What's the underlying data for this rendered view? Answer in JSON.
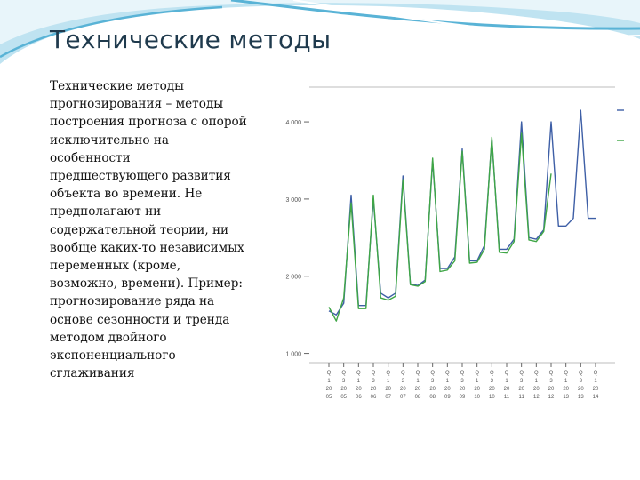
{
  "slide": {
    "title": "Технические методы",
    "body": "Технические методы прогнозирования – методы построения прогноза с опорой исключительно на особенности предшествующего развития объекта во времени. Не предполагают ни содержательной теории, ни вообще каких-то независимых переменных (кроме, возможно, времени). Пример: прогнозирование ряда на основе сезонности и тренда методом двойного экспоненциального сглаживания",
    "colors": {
      "title": "#1f3a4d",
      "wave_dark": "#59b3d6",
      "wave_light": "#bfe3f1",
      "actual": "#3e5fa6",
      "fitted": "#3fa646"
    }
  },
  "chart_data": {
    "type": "line",
    "y_ticks": [
      {
        "value": 1000,
        "label": "1 000"
      },
      {
        "value": 2000,
        "label": "2 000"
      },
      {
        "value": 3000,
        "label": "3 000"
      },
      {
        "value": 4000,
        "label": "4 000"
      }
    ],
    "ylim": [
      880,
      4450
    ],
    "x_ticks": [
      [
        "Q",
        "1",
        "20",
        "05"
      ],
      [
        "Q",
        "3",
        "20",
        "05"
      ],
      [
        "Q",
        "1",
        "20",
        "06"
      ],
      [
        "Q",
        "3",
        "20",
        "06"
      ],
      [
        "Q",
        "1",
        "20",
        "07"
      ],
      [
        "Q",
        "3",
        "20",
        "07"
      ],
      [
        "Q",
        "1",
        "20",
        "08"
      ],
      [
        "Q",
        "3",
        "20",
        "08"
      ],
      [
        "Q",
        "1",
        "20",
        "09"
      ],
      [
        "Q",
        "3",
        "20",
        "09"
      ],
      [
        "Q",
        "1",
        "20",
        "10"
      ],
      [
        "Q",
        "3",
        "20",
        "10"
      ],
      [
        "Q",
        "1",
        "20",
        "11"
      ],
      [
        "Q",
        "3",
        "20",
        "11"
      ],
      [
        "Q",
        "1",
        "20",
        "12"
      ],
      [
        "Q",
        "3",
        "20",
        "12"
      ],
      [
        "Q",
        "1",
        "20",
        "13"
      ],
      [
        "Q",
        "3",
        "20",
        "13"
      ],
      [
        "Q",
        "1",
        "20",
        "14"
      ]
    ],
    "x": [
      0,
      0.5,
      1,
      1.5,
      2,
      2.5,
      3,
      3.5,
      4,
      4.5,
      5,
      5.5,
      6,
      6.5,
      7,
      7.5,
      8,
      8.5,
      9,
      9.5,
      10,
      10.5,
      11,
      11.5,
      12,
      12.5,
      13,
      13.5,
      14,
      14.5,
      15,
      15.5,
      16,
      16.5,
      17,
      17.5,
      18
    ],
    "series": [
      {
        "color": "#3e5fa6",
        "values": [
          1550,
          1500,
          1650,
          3050,
          1620,
          1620,
          3000,
          1780,
          1720,
          1780,
          3300,
          1900,
          1880,
          1950,
          3500,
          2100,
          2100,
          2250,
          3650,
          2200,
          2200,
          2400,
          3780,
          2350,
          2350,
          2480,
          4000,
          2500,
          2480,
          2600,
          4000,
          2650,
          2650,
          2750,
          4150,
          2750,
          2750
        ]
      },
      {
        "color": "#3fa646",
        "values": [
          1600,
          1420,
          1720,
          2950,
          1580,
          1580,
          3050,
          1720,
          1690,
          1740,
          3250,
          1890,
          1870,
          1930,
          3530,
          2060,
          2080,
          2200,
          3620,
          2170,
          2180,
          2350,
          3800,
          2310,
          2300,
          2450,
          3850,
          2470,
          2450,
          2580,
          3330,
          null,
          null,
          null,
          null,
          null,
          null
        ]
      }
    ]
  }
}
